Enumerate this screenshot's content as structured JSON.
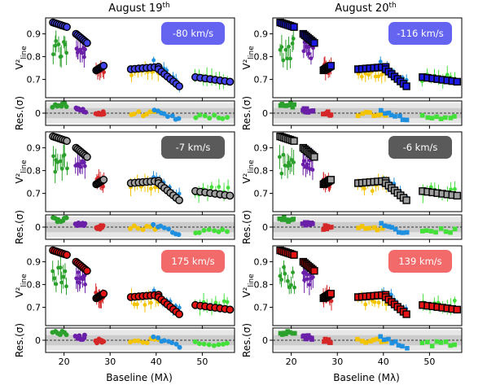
{
  "chart_data": {
    "type": "scatter",
    "columns": [
      {
        "title": "August 19",
        "title_sup": "th"
      },
      {
        "title": "August 20",
        "title_sup": "th"
      }
    ],
    "xlabel": "Baseline (Mλ)",
    "xlim": [
      16,
      57
    ],
    "xticks": [
      20,
      30,
      40,
      50
    ],
    "ylabel_main": "V²",
    "ylabel_main_sub": "line",
    "ylabel_res": "Res.(σ)",
    "main_ylim": [
      0.62,
      0.97
    ],
    "main_yticks": [
      0.7,
      0.8,
      0.9
    ],
    "res_ylim": [
      -1.2,
      1.2
    ],
    "res_yticks": [
      0
    ],
    "colors": {
      "green": "#2ca02c",
      "purple": "#6a1fa8",
      "red": "#d62728",
      "yellow": "#f5c400",
      "blue": "#1f8fe0",
      "lime": "#44e03a",
      "band_outer": "#e6e6e6",
      "band_inner": "#cccccc"
    },
    "rows": [
      {
        "velocities": [
          "-80 km/s",
          "-116 km/s"
        ],
        "model_colors": [
          "#4444ee",
          "#1a1ae0"
        ],
        "box_colors": [
          "#6464f0",
          "#6464f0"
        ]
      },
      {
        "velocities": [
          "-7 km/s",
          "-6 km/s"
        ],
        "model_colors": [
          "#a0a0a0",
          "#a0a0a0"
        ],
        "box_colors": [
          "#5a5a5a",
          "#5a5a5a"
        ]
      },
      {
        "velocities": [
          "175 km/s",
          "139 km/s"
        ],
        "model_colors": [
          "#e61414",
          "#e61414"
        ],
        "box_colors": [
          "#f26a6a",
          "#f26a6a"
        ]
      }
    ],
    "groups": [
      {
        "name": "green",
        "x": [
          17.6,
          20.6
        ],
        "y": [
          0.83,
          0.83
        ],
        "spread": 0.05,
        "err": 0.04
      },
      {
        "name": "purple",
        "x": [
          22.6,
          24.6
        ],
        "y": [
          0.84,
          0.82
        ],
        "spread": 0.03,
        "err": 0.04
      },
      {
        "name": "red",
        "x": [
          27.0,
          28.6
        ],
        "y": [
          0.75,
          0.74
        ],
        "spread": 0.02,
        "err": 0.03
      },
      {
        "name": "yellow",
        "x": [
          34.5,
          40.5
        ],
        "y": [
          0.73,
          0.73
        ],
        "spread": 0.02,
        "err": 0.03
      },
      {
        "name": "blue",
        "x": [
          39.5,
          45.0
        ],
        "y": [
          0.77,
          0.68
        ],
        "spread": 0.02,
        "err": 0.02
      },
      {
        "name": "lime",
        "x": [
          48.5,
          55.5
        ],
        "y": [
          0.71,
          0.71
        ],
        "spread": 0.02,
        "err": 0.03
      }
    ],
    "model": [
      {
        "x": [
          17.6,
          20.6
        ],
        "y": [
          0.95,
          0.93
        ]
      },
      {
        "x": [
          22.6,
          25.0
        ],
        "y": [
          0.9,
          0.86
        ]
      },
      {
        "x": [
          27.0,
          28.6
        ],
        "y": [
          0.74,
          0.76
        ]
      },
      {
        "x": [
          34.5,
          40.5
        ],
        "y": [
          0.745,
          0.755
        ]
      },
      {
        "x": [
          40.5,
          45.0
        ],
        "y": [
          0.745,
          0.67
        ]
      },
      {
        "x": [
          48.5,
          56.0
        ],
        "y": [
          0.71,
          0.69
        ]
      }
    ]
  }
}
